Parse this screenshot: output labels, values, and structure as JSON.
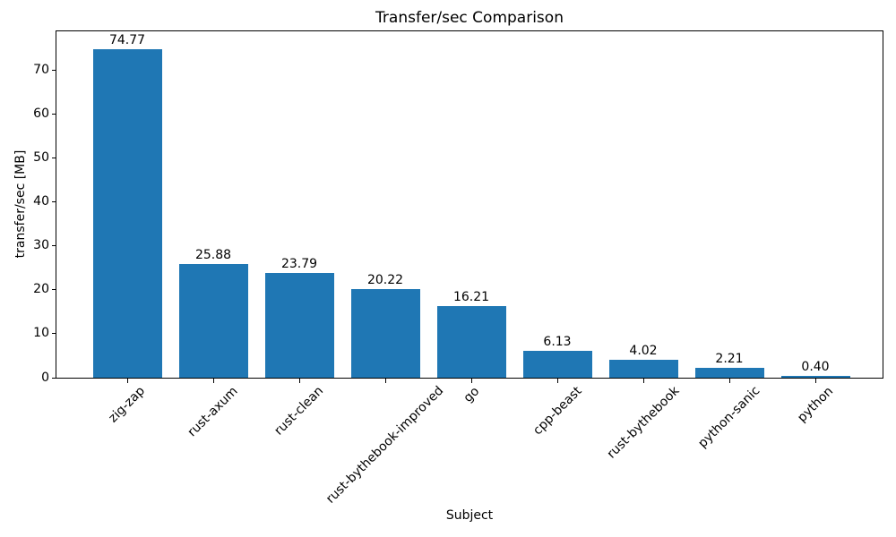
{
  "chart_data": {
    "type": "bar",
    "title": "Transfer/sec Comparison",
    "xlabel": "Subject",
    "ylabel": "transfer/sec [MB]",
    "categories": [
      "zig-zap",
      "rust-axum",
      "rust-clean",
      "rust-bythebook-improved",
      "go",
      "cpp-beast",
      "rust-bythebook",
      "python-sanic",
      "python"
    ],
    "values": [
      74.77,
      25.88,
      23.79,
      20.22,
      16.21,
      6.13,
      4.02,
      2.21,
      0.4
    ],
    "value_labels": [
      "74.77",
      "25.88",
      "23.79",
      "20.22",
      "16.21",
      "6.13",
      "4.02",
      "2.21",
      "0.40"
    ],
    "yticks": [
      0,
      10,
      20,
      30,
      40,
      50,
      60,
      70
    ],
    "ylim": [
      0,
      78.75
    ],
    "bar_color": "#1f77b4",
    "text_color": "#000000",
    "grid": false,
    "legend_position": "none",
    "x_tick_rotation_deg": 45
  }
}
